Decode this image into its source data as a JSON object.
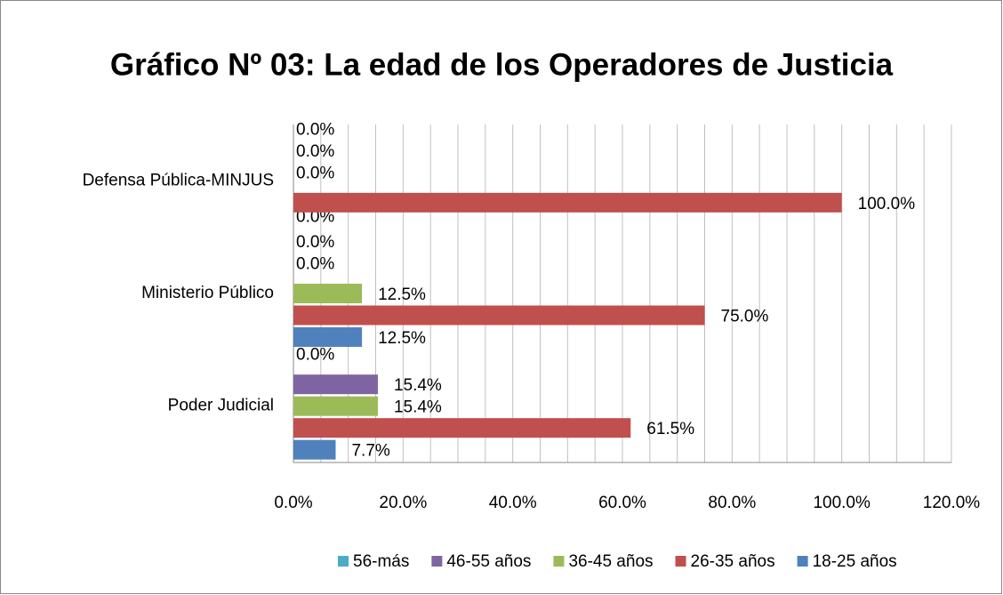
{
  "chart_data": {
    "type": "bar",
    "orientation": "horizontal",
    "title": "Gráfico Nº 03: La edad de los Operadores de Justicia",
    "categories": [
      "Poder Judicial",
      "Ministerio Público",
      "Defensa Pública-MINJUS"
    ],
    "series": [
      {
        "name": "18-25 años",
        "color": "#4f81bd",
        "values": [
          7.7,
          12.5,
          0.0
        ],
        "value_labels": [
          "7.7%",
          "12.5%",
          "0.0%"
        ]
      },
      {
        "name": "26-35 años",
        "color": "#c0504d",
        "values": [
          61.5,
          75.0,
          100.0
        ],
        "value_labels": [
          "61.5%",
          "75.0%",
          "100.0%"
        ]
      },
      {
        "name": "36-45 años",
        "color": "#9bbb59",
        "values": [
          15.4,
          12.5,
          0.0
        ],
        "value_labels": [
          "15.4%",
          "12.5%",
          "0.0%"
        ]
      },
      {
        "name": "46-55 años",
        "color": "#8064a2",
        "values": [
          15.4,
          0.0,
          0.0
        ],
        "value_labels": [
          "15.4%",
          "0.0%",
          "0.0%"
        ]
      },
      {
        "name": "56-más",
        "color": "#4bacc6",
        "values": [
          0.0,
          0.0,
          0.0
        ],
        "value_labels": [
          "0.0%",
          "0.0%",
          "0.0%"
        ]
      }
    ],
    "xlim": [
      0,
      120
    ],
    "xticks": [
      {
        "value": 0,
        "label": "0.0%"
      },
      {
        "value": 20,
        "label": "20.0%"
      },
      {
        "value": 40,
        "label": "40.0%"
      },
      {
        "value": 60,
        "label": "60.0%"
      },
      {
        "value": 80,
        "label": "80.0%"
      },
      {
        "value": 100,
        "label": "100.0%"
      },
      {
        "value": 120,
        "label": "120.0%"
      }
    ],
    "grid": true,
    "legend": "bottom"
  }
}
